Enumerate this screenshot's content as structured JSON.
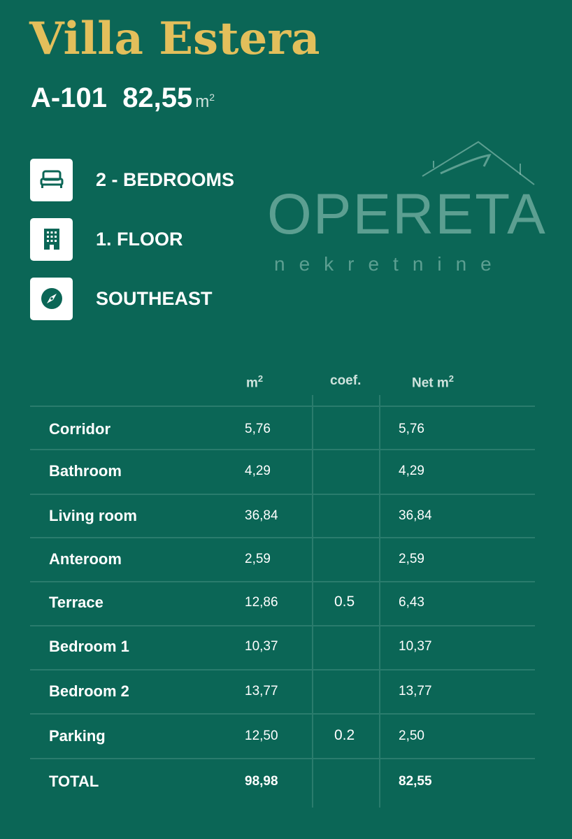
{
  "title": "Villa Estera",
  "unit": {
    "code": "A-101",
    "area": "82,55",
    "area_unit": "m",
    "area_unit_sup": "2"
  },
  "features": [
    {
      "icon": "bed-icon",
      "label": "2 - BEDROOMS"
    },
    {
      "icon": "building-icon",
      "label": "1. FLOOR"
    },
    {
      "icon": "compass-icon",
      "label": "SOUTHEAST"
    }
  ],
  "table": {
    "headers": {
      "m2": "m",
      "m2_sup": "2",
      "coef": "coef.",
      "net": "Net m",
      "net_sup": "2"
    },
    "rows": [
      {
        "room": "Corridor",
        "m2": "5,76",
        "coef": "",
        "net": "5,76"
      },
      {
        "room": "Bathroom",
        "m2": "4,29",
        "coef": "",
        "net": "4,29"
      },
      {
        "room": "Living room",
        "m2": "36,84",
        "coef": "",
        "net": "36,84"
      },
      {
        "room": "Anteroom",
        "m2": "2,59",
        "coef": "",
        "net": "2,59"
      },
      {
        "room": "Terrace",
        "m2": "12,86",
        "coef": "0.5",
        "net": "6,43"
      },
      {
        "room": "Bedroom 1",
        "m2": "10,37",
        "coef": "",
        "net": "10,37"
      },
      {
        "room": "Bedroom 2",
        "m2": "13,77",
        "coef": "",
        "net": "13,77"
      },
      {
        "room": "Parking",
        "m2": "12,50",
        "coef": "0.2",
        "net": "2,50"
      }
    ],
    "total": {
      "room": "TOTAL",
      "m2": "98,98",
      "coef": "",
      "net": "82,55"
    }
  },
  "watermark": {
    "brand": "OPERETA",
    "sub": "nekretnine"
  },
  "colors": {
    "background": "#0b6656",
    "title": "#e3bf5b"
  }
}
